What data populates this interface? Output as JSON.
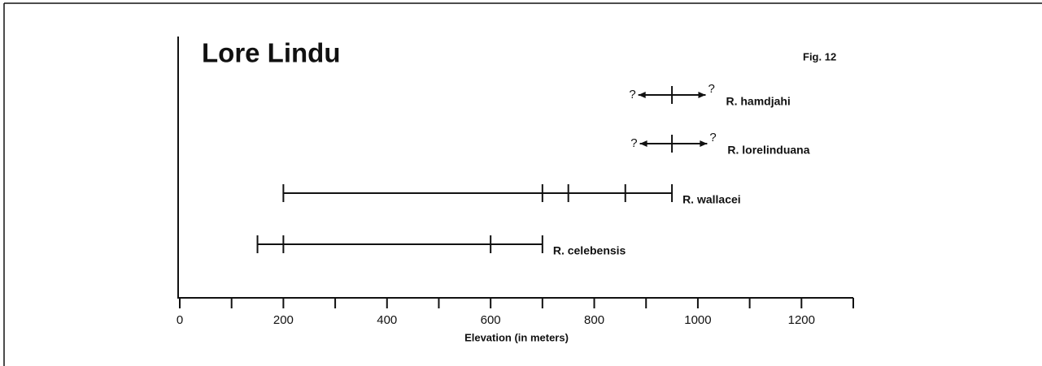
{
  "chart_data": {
    "type": "range",
    "title": "Lore Lindu",
    "figure_label": "Fig. 12",
    "x_label": "Elevation (in meters)",
    "xlim": [
      0,
      1300
    ],
    "xticks": [
      0,
      200,
      400,
      600,
      800,
      1000,
      1200
    ],
    "xminor_ticks": [
      100,
      300,
      500,
      700,
      900,
      1100,
      1300
    ],
    "uncertain_label": "?",
    "color": "#111111",
    "series": [
      {
        "name": "R. hamdjahi",
        "values": [
          950
        ],
        "extent": [
          885,
          1015
        ]
      },
      {
        "name": "R. lorelinduana",
        "values": [
          950
        ],
        "extent": [
          888,
          1018
        ]
      },
      {
        "name": "R. wallacei",
        "values": [
          200,
          700,
          750,
          860,
          950
        ]
      },
      {
        "name": "R. celebensis",
        "values": [
          150,
          200,
          600,
          700
        ]
      }
    ]
  }
}
